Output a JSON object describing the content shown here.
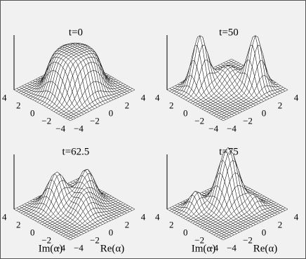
{
  "panels": [
    {
      "title": "t=0",
      "im_ticks": [
        "4",
        "2",
        "0",
        "−2",
        "−4"
      ],
      "re_ticks": [
        "−4",
        "−2",
        "0",
        "2",
        "4"
      ]
    },
    {
      "title": "t=50",
      "im_ticks": [
        "4",
        "2",
        "0",
        "−2",
        "−4"
      ],
      "re_ticks": [
        "−4",
        "−2",
        "0",
        "2",
        "4"
      ]
    },
    {
      "title": "t=62.5",
      "im_ticks": [
        "4",
        "2",
        "0",
        "−2",
        "−4"
      ],
      "re_ticks": [
        "−4",
        "−2",
        "0",
        "2",
        "4"
      ],
      "im_label": "Im(α)",
      "re_label": "Re(α)"
    },
    {
      "title": "t=75",
      "im_ticks": [
        "4",
        "2",
        "0",
        "−2",
        "−4"
      ],
      "re_ticks": [
        "−4",
        "−2",
        "0",
        "2",
        "4"
      ],
      "im_label": "Im(α)",
      "re_label": "Re(α)"
    }
  ]
}
